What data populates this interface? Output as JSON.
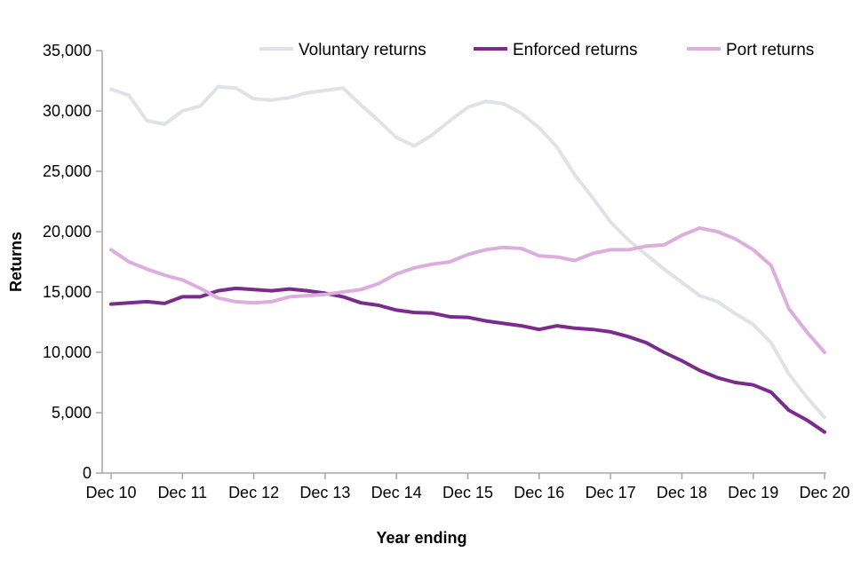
{
  "chart_data": {
    "type": "line",
    "xlabel": "Year ending",
    "ylabel": "Returns",
    "ylim": [
      0,
      35000
    ],
    "yticks": [
      0,
      5000,
      10000,
      15000,
      20000,
      25000,
      30000,
      35000
    ],
    "ytick_labels": [
      "0",
      "5,000",
      "10,000",
      "15,000",
      "20,000",
      "25,000",
      "30,000",
      "35,000"
    ],
    "x": [
      "Dec 10",
      "Mar 11",
      "Jun 11",
      "Sep 11",
      "Dec 11",
      "Mar 12",
      "Jun 12",
      "Sep 12",
      "Dec 12",
      "Mar 13",
      "Jun 13",
      "Sep 13",
      "Dec 13",
      "Mar 14",
      "Jun 14",
      "Sep 14",
      "Dec 14",
      "Mar 15",
      "Jun 15",
      "Sep 15",
      "Dec 15",
      "Mar 16",
      "Jun 16",
      "Sep 16",
      "Dec 16",
      "Mar 17",
      "Jun 17",
      "Sep 17",
      "Dec 17",
      "Mar 18",
      "Jun 18",
      "Sep 18",
      "Dec 18",
      "Mar 19",
      "Jun 19",
      "Sep 19",
      "Dec 19",
      "Mar 20",
      "Jun 20",
      "Sep 20",
      "Dec 20"
    ],
    "xtick_labels": [
      "Dec 10",
      "Dec 11",
      "Dec 12",
      "Dec 13",
      "Dec 14",
      "Dec 15",
      "Dec 16",
      "Dec 17",
      "Dec 18",
      "Dec 19",
      "Dec 20"
    ],
    "legend_position": "top-right",
    "grid": false,
    "series": [
      {
        "name": "Voluntary returns",
        "color": "#e1e1e8",
        "values": [
          31800,
          31300,
          29200,
          28900,
          30000,
          30400,
          32000,
          31900,
          31000,
          30900,
          31100,
          31500,
          31700,
          31900,
          30500,
          29200,
          27800,
          27100,
          28000,
          29200,
          30300,
          30800,
          30600,
          29800,
          28600,
          27000,
          24700,
          22800,
          20800,
          19300,
          18100,
          16900,
          15800,
          14700,
          14200,
          13200,
          12300,
          10800,
          8200,
          6300,
          4600
        ]
      },
      {
        "name": "Enforced returns",
        "color": "#7a2c8c",
        "values": [
          14000,
          14100,
          14200,
          14050,
          14600,
          14600,
          15100,
          15300,
          15200,
          15100,
          15250,
          15100,
          14900,
          14600,
          14100,
          13900,
          13500,
          13300,
          13250,
          12950,
          12900,
          12600,
          12400,
          12200,
          11900,
          12200,
          12000,
          11900,
          11700,
          11300,
          10800,
          10000,
          9300,
          8500,
          7900,
          7500,
          7300,
          6700,
          5200,
          4400,
          3400
        ]
      },
      {
        "name": "Port returns",
        "color": "#dcaede",
        "values": [
          18500,
          17500,
          16900,
          16400,
          16000,
          15300,
          14500,
          14200,
          14100,
          14200,
          14600,
          14700,
          14800,
          15000,
          15200,
          15700,
          16500,
          17000,
          17300,
          17500,
          18100,
          18500,
          18700,
          18600,
          18000,
          17900,
          17600,
          18200,
          18500,
          18500,
          18800,
          18900,
          19700,
          20300,
          20000,
          19400,
          18500,
          17200,
          13600,
          11700,
          10000
        ]
      }
    ]
  }
}
